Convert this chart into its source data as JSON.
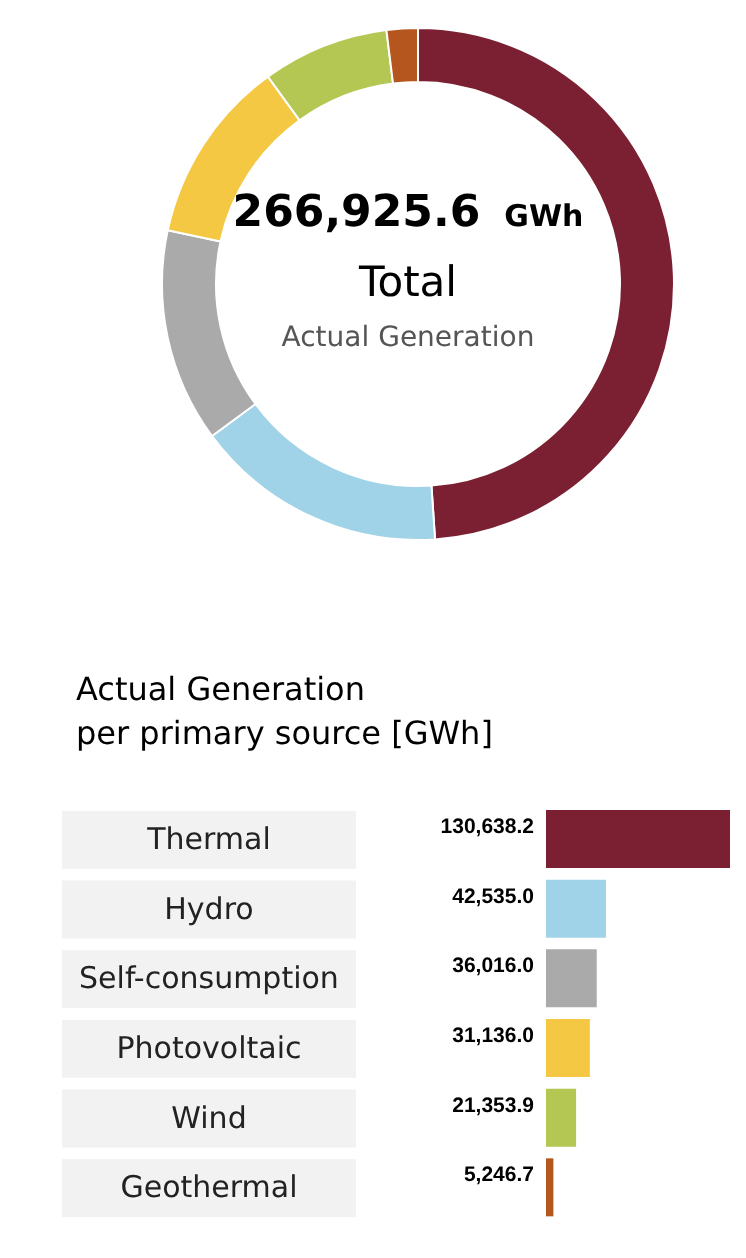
{
  "chart_data": [
    {
      "type": "donut",
      "categories": [
        null,
        null,
        null,
        null,
        null,
        null
      ],
      "values": [
        48.94,
        15.94,
        13.49,
        11.66,
        8.0,
        1.97
      ],
      "colors": [
        "#7b2032",
        "#a0d2e8",
        "#aaaaaa",
        "#f4c842",
        "#b3c752",
        "#b5561e"
      ],
      "annotations": [
        "266,925.6",
        "GWh",
        "Total",
        "Actual Generation"
      ]
    },
    {
      "type": "bar",
      "orientation": "horizontal",
      "title": "Actual Generation\nper primary source [GWh]",
      "categories": [
        "Thermal",
        "Hydro",
        "Self-consumption",
        "Photovoltaic",
        "Wind",
        "Geothermal"
      ],
      "values": [
        130638.2,
        42535.0,
        36016.0,
        31136.0,
        21353.9,
        5246.7
      ],
      "colors": [
        "#7b2032",
        "#a0d2e8",
        "#aaaaaa",
        "#f4c842",
        "#b3c752",
        "#b5561e"
      ],
      "value_labels": [
        "130,638.2",
        "42,535.0",
        "36,016.0",
        "31,136.0",
        "21,353.9",
        "5,246.7"
      ]
    }
  ]
}
